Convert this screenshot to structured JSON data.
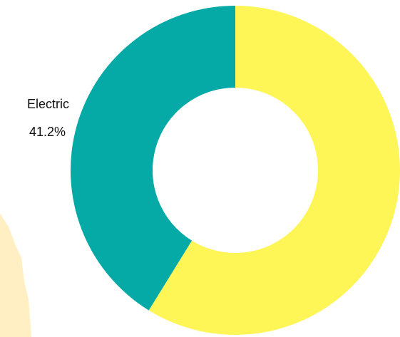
{
  "chart_data": {
    "type": "pie",
    "variant": "donut",
    "slices": [
      {
        "label": "",
        "value": 58.8,
        "value_text": "",
        "color": "#FEF556"
      },
      {
        "label": "Electric",
        "value": 41.2,
        "value_text": "41.2%",
        "color": "#05AAA7"
      }
    ],
    "title": "",
    "legend": "none"
  },
  "background": {
    "color": "#FFFFFF",
    "texture_color": "#FFEFC2"
  }
}
